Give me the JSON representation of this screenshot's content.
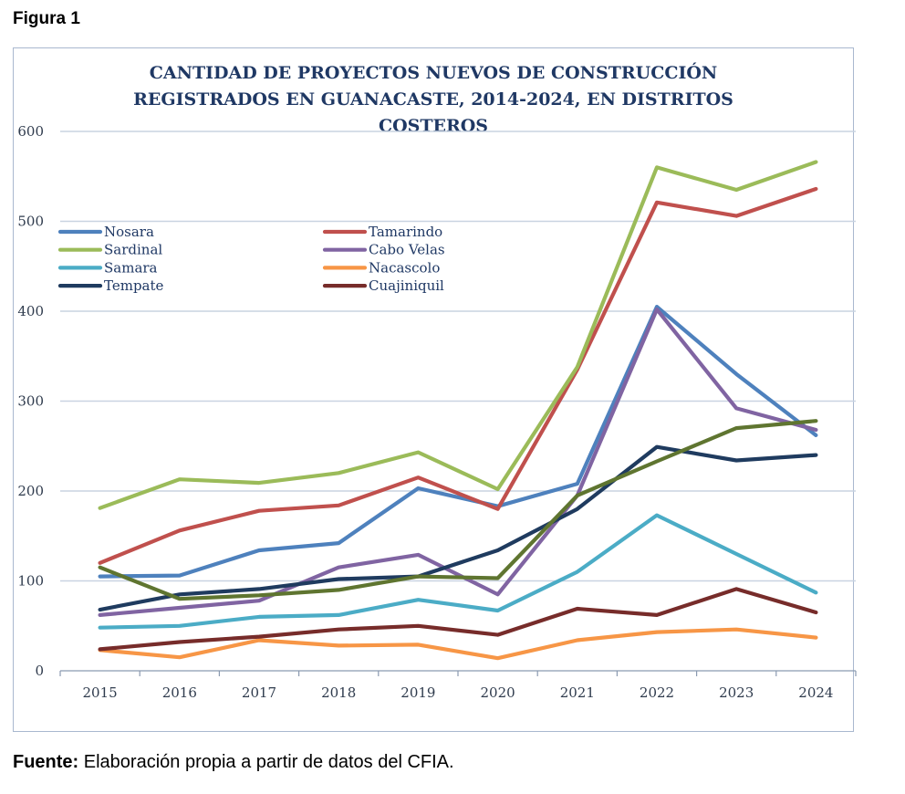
{
  "figure_label": "Figura 1",
  "source": {
    "prefix": "Fuente:",
    "text": " Elaboración propia a partir de datos del CFIA."
  },
  "chart_data": {
    "type": "line",
    "title_lines": [
      "CANTIDAD DE PROYECTOS NUEVOS DE CONSTRUCCIÓN",
      "REGISTRADOS EN GUANACASTE, 2014-2024, EN DISTRITOS",
      "COSTEROS"
    ],
    "x": [
      "2015",
      "2016",
      "2017",
      "2018",
      "2019",
      "2020",
      "2021",
      "2022",
      "2023",
      "2024"
    ],
    "ylim": [
      0,
      600
    ],
    "yticks": [
      "0",
      "100",
      "200",
      "300",
      "400",
      "500",
      "600"
    ],
    "grid": true,
    "legend_position": "top-left",
    "series": [
      {
        "name": "Nosara",
        "color": "#4e81bd",
        "values": [
          105,
          106,
          134,
          142,
          203,
          183,
          208,
          405,
          330,
          262
        ]
      },
      {
        "name": "Tamarindo",
        "color": "#c0504d",
        "values": [
          120,
          156,
          178,
          184,
          215,
          180,
          335,
          521,
          506,
          536
        ]
      },
      {
        "name": "Sardinal",
        "color": "#9bbb59",
        "values": [
          181,
          213,
          209,
          220,
          243,
          202,
          338,
          560,
          535,
          566
        ]
      },
      {
        "name": "Cabo Velas",
        "color": "#8064a2",
        "values": [
          62,
          70,
          78,
          115,
          129,
          85,
          195,
          402,
          292,
          268
        ]
      },
      {
        "name": "Samara",
        "color": "#4bacc6",
        "values": [
          48,
          50,
          60,
          62,
          79,
          67,
          110,
          173,
          130,
          87
        ]
      },
      {
        "name": "Nacascolo",
        "color": "#f79646",
        "values": [
          23,
          15,
          34,
          28,
          29,
          14,
          34,
          43,
          46,
          37
        ]
      },
      {
        "name": "Tempate",
        "color": "#1f3b5f",
        "values": [
          68,
          85,
          91,
          102,
          105,
          134,
          180,
          249,
          234,
          240
        ]
      },
      {
        "name": "Cuajiniquil",
        "color": "#772c2a",
        "values": [
          24,
          32,
          38,
          46,
          50,
          40,
          69,
          62,
          91,
          65
        ]
      },
      {
        "name": "",
        "color": "#5f7530",
        "values": [
          115,
          80,
          84,
          90,
          105,
          103,
          195,
          233,
          270,
          278
        ]
      }
    ]
  }
}
